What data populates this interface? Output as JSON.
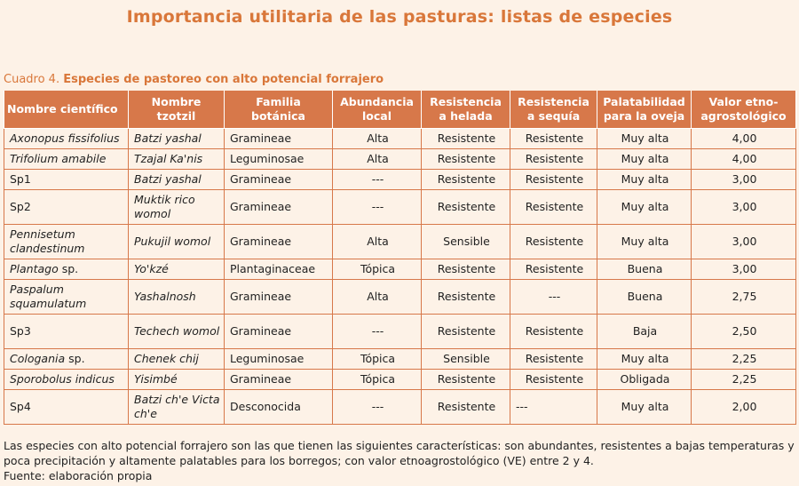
{
  "header": {
    "title": "Importancia utilitaria de las pasturas: listas de especies"
  },
  "caption": {
    "label": "Cuadro 4.",
    "title": "Especies de pastoreo con alto potencial forrajero"
  },
  "table": {
    "columns": [
      "Nombre científico",
      "Nombre tzotzil",
      "Familia botánica",
      "Abundancia local",
      "Resistencia a helada",
      "Resistencia a sequía",
      "Palatabilidad para la oveja",
      "Valor etno-agrostológico"
    ],
    "rows": [
      {
        "sci": "Axonopus fissifolius",
        "tzotzil": "Batzi yashal",
        "family": "Gramineae",
        "abundance": "Alta",
        "frost": "Resistente",
        "drought": "Resistente",
        "palatability": "Muy alta",
        "value": "4,00"
      },
      {
        "sci": "Trifolium amabile",
        "tzotzil": "Tzajal Ka'nis",
        "family": "Leguminosae",
        "abundance": "Alta",
        "frost": "Resistente",
        "drought": "Resistente",
        "palatability": "Muy alta",
        "value": "4,00"
      },
      {
        "sci": "Sp1",
        "tzotzil": "Batzi yashal",
        "family": "Gramineae",
        "abundance": "---",
        "frost": "Resistente",
        "drought": "Resistente",
        "palatability": "Muy alta",
        "value": "3,00"
      },
      {
        "sci": "Sp2",
        "tzotzil": "Muktik rico womol",
        "family": "Gramineae",
        "abundance": "---",
        "frost": "Resistente",
        "drought": "Resistente",
        "palatability": "Muy alta",
        "value": "3,00"
      },
      {
        "sci": "Pennisetum clandestinum",
        "tzotzil": "Pukujil womol",
        "family": "Gramineae",
        "abundance": "Alta",
        "frost": "Sensible",
        "drought": "Resistente",
        "palatability": "Muy alta",
        "value": "3,00"
      },
      {
        "sci": "Plantago",
        "sci_suffix": " sp.",
        "tzotzil": "Yo'kzé",
        "family": "Plantaginaceae",
        "abundance": "Tópica",
        "frost": "Resistente",
        "drought": "Resistente",
        "palatability": "Buena",
        "value": "3,00"
      },
      {
        "sci": "Paspalum squamulatum",
        "tzotzil": "Yashalnosh",
        "family": "Gramineae",
        "abundance": "Alta",
        "frost": "Resistente",
        "drought": "---",
        "palatability": "Buena",
        "value": "2,75"
      },
      {
        "sci": "Sp3",
        "tzotzil": "Techech womol",
        "family": "Gramineae",
        "abundance": "---",
        "frost": "Resistente",
        "drought": "Resistente",
        "palatability": "Baja",
        "value": "2,50"
      },
      {
        "sci": "Cologania",
        "sci_suffix": " sp.",
        "tzotzil": "Chenek chij",
        "family": "Leguminosae",
        "abundance": "Tópica",
        "frost": "Sensible",
        "drought": "Resistente",
        "palatability": "Muy alta",
        "value": "2,25"
      },
      {
        "sci": "Sporobolus indicus",
        "tzotzil": "Yisimbé",
        "family": "Gramineae",
        "abundance": "Tópica",
        "frost": "Resistente",
        "drought": "Resistente",
        "palatability": "Obligada",
        "value": "2,25"
      },
      {
        "sci": "Sp4",
        "tzotzil": "Batzi ch'e Victa ch'e",
        "family": "Desconocida",
        "abundance": "---",
        "frost": "Resistente",
        "drought": "---",
        "palatability": "Muy alta",
        "value": "2,00"
      }
    ]
  },
  "notes": {
    "description": "Las especies con alto potencial forrajero son las que tienen las siguientes características: son abundantes, resistentes a bajas temperaturas y poca precipitación y altamente palatables para los borregos; con valor etnoagrostológico (VE) entre 2 y 4.",
    "source": "Fuente: elaboración propia"
  },
  "colors": {
    "accent": "#d9773a",
    "header_bg": "#d7784a",
    "page_bg": "#fdf2e7"
  }
}
